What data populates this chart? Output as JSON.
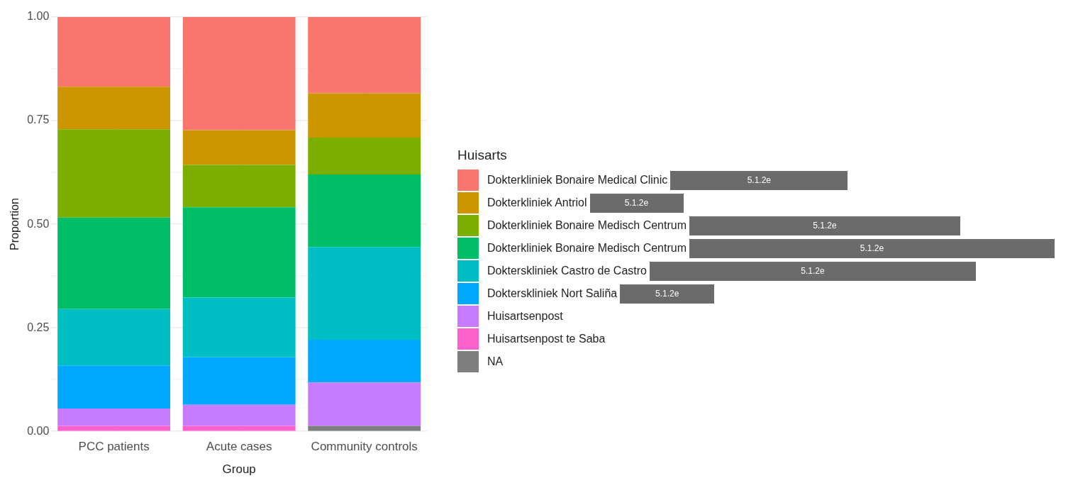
{
  "chart_data": {
    "type": "bar",
    "stacked": true,
    "categories": [
      "PCC patients",
      "Acute cases",
      "Community controls"
    ],
    "xlabel": "Group",
    "ylabel": "Proportion",
    "legend_title": "Huisarts",
    "ylim": [
      0,
      1
    ],
    "yticks": [
      {
        "value": 0,
        "label": "0.00"
      },
      {
        "value": 0.25,
        "label": "0.25"
      },
      {
        "value": 0.5,
        "label": "0.50"
      },
      {
        "value": 0.75,
        "label": "0.75"
      },
      {
        "value": 1,
        "label": "1.00"
      }
    ],
    "grid": true,
    "legend": "right",
    "series": [
      {
        "name": "NA",
        "color": "#7f7f7f",
        "values": [
          0,
          0,
          0.013
        ]
      },
      {
        "name": "Huisartsenpost te Saba",
        "color": "#ff61cc",
        "values": [
          0.013,
          0.013,
          0
        ]
      },
      {
        "name": "Huisartsenpost",
        "color": "#c77cff",
        "values": [
          0.042,
          0.051,
          0.105
        ]
      },
      {
        "name": "Dokterskliniek Nort Saliña",
        "color": "#00a9ff",
        "values": [
          0.104,
          0.115,
          0.103
        ]
      },
      {
        "name": "Dokterskliniek Castro de Castro",
        "color": "#00bfc4",
        "values": [
          0.136,
          0.144,
          0.224
        ]
      },
      {
        "name": "Dokterkliniek Bonaire Medisch Centrum",
        "color": "#00be67",
        "values": [
          0.221,
          0.218,
          0.175
        ]
      },
      {
        "name": "Dokterkliniek Bonaire Medisch Centrum",
        "color": "#7cae00",
        "values": [
          0.213,
          0.102,
          0.089
        ]
      },
      {
        "name": "Dokterkliniek Antriol",
        "color": "#cd9600",
        "values": [
          0.103,
          0.084,
          0.107
        ]
      },
      {
        "name": "Dokterkliniek  Bonaire  Medical Clinic",
        "color": "#f8766d",
        "values": [
          0.168,
          0.273,
          0.184
        ]
      }
    ],
    "annotations": [
      "5.1.2e",
      "5.1.2e",
      "5.1.2e",
      "5.1.2e",
      "5.1.2e",
      "5.1.2e"
    ]
  }
}
